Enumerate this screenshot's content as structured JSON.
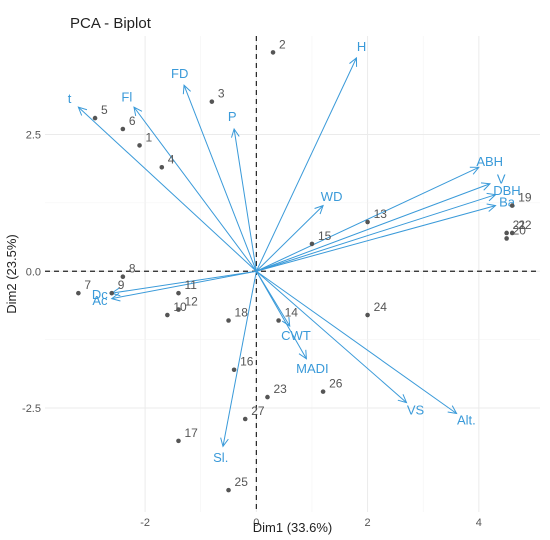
{
  "chart_data": {
    "type": "biplot",
    "title": "PCA - Biplot",
    "xlabel": "Dim1 (33.6%)",
    "ylabel": "Dim2 (23.5%)",
    "xlim": [
      -3.8,
      5.1
    ],
    "ylim": [
      -4.4,
      4.3
    ],
    "x_ticks": [
      -2,
      0,
      2,
      4
    ],
    "y_ticks": [
      -2.5,
      0.0,
      2.5
    ],
    "x_tick_labels": [
      "-2",
      "0",
      "2",
      "4"
    ],
    "y_tick_labels": [
      "-2.5",
      "0.0",
      "2.5"
    ],
    "grid": true,
    "point_color": "#555555",
    "vector_color": "#3a9ad9",
    "individuals": [
      {
        "label": "1",
        "x": -2.1,
        "y": 2.3
      },
      {
        "label": "2",
        "x": 0.3,
        "y": 4.0
      },
      {
        "label": "3",
        "x": -0.8,
        "y": 3.1
      },
      {
        "label": "4",
        "x": -1.7,
        "y": 1.9
      },
      {
        "label": "5",
        "x": -2.9,
        "y": 2.8
      },
      {
        "label": "6",
        "x": -2.4,
        "y": 2.6
      },
      {
        "label": "7",
        "x": -3.2,
        "y": -0.4
      },
      {
        "label": "8",
        "x": -2.4,
        "y": -0.1
      },
      {
        "label": "9",
        "x": -2.6,
        "y": -0.4
      },
      {
        "label": "10",
        "x": -1.6,
        "y": -0.8
      },
      {
        "label": "11",
        "x": -1.4,
        "y": -0.4
      },
      {
        "label": "12",
        "x": -1.4,
        "y": -0.7
      },
      {
        "label": "13",
        "x": 2.0,
        "y": 0.9
      },
      {
        "label": "14",
        "x": 0.4,
        "y": -0.9
      },
      {
        "label": "15",
        "x": 1.0,
        "y": 0.5
      },
      {
        "label": "16",
        "x": -0.4,
        "y": -1.8
      },
      {
        "label": "17",
        "x": -1.4,
        "y": -3.1
      },
      {
        "label": "18",
        "x": -0.5,
        "y": -0.9
      },
      {
        "label": "19",
        "x": 4.6,
        "y": 1.2
      },
      {
        "label": "20",
        "x": 4.5,
        "y": 0.6
      },
      {
        "label": "21",
        "x": 4.5,
        "y": 0.7
      },
      {
        "label": "22",
        "x": 4.6,
        "y": 0.7
      },
      {
        "label": "23",
        "x": 0.2,
        "y": -2.3
      },
      {
        "label": "24",
        "x": 2.0,
        "y": -0.8
      },
      {
        "label": "25",
        "x": -0.5,
        "y": -4.0
      },
      {
        "label": "26",
        "x": 1.2,
        "y": -2.2
      },
      {
        "label": "27",
        "x": -0.2,
        "y": -2.7
      }
    ],
    "variables": [
      {
        "label": "H",
        "x": 1.8,
        "y": 3.9
      },
      {
        "label": "FD",
        "x": -1.3,
        "y": 3.4
      },
      {
        "label": "P",
        "x": -0.4,
        "y": 2.6
      },
      {
        "label": "t",
        "x": -3.2,
        "y": 3.0
      },
      {
        "label": "Fl",
        "x": -2.2,
        "y": 3.0
      },
      {
        "label": "ABH",
        "x": 4.0,
        "y": 1.9
      },
      {
        "label": "V",
        "x": 4.2,
        "y": 1.6
      },
      {
        "label": "DBH",
        "x": 4.3,
        "y": 1.4
      },
      {
        "label": "Ba",
        "x": 4.3,
        "y": 1.2
      },
      {
        "label": "WD",
        "x": 1.2,
        "y": 1.2
      },
      {
        "label": "Dc",
        "x": -2.6,
        "y": -0.4
      },
      {
        "label": "Ac",
        "x": -2.6,
        "y": -0.5
      },
      {
        "label": "CWT",
        "x": 0.6,
        "y": -1.0
      },
      {
        "label": "MADI",
        "x": 0.9,
        "y": -1.6
      },
      {
        "label": "VS",
        "x": 2.7,
        "y": -2.4
      },
      {
        "label": "Alt.",
        "x": 3.6,
        "y": -2.6
      },
      {
        "label": "Sl.",
        "x": -0.6,
        "y": -3.2
      }
    ]
  }
}
